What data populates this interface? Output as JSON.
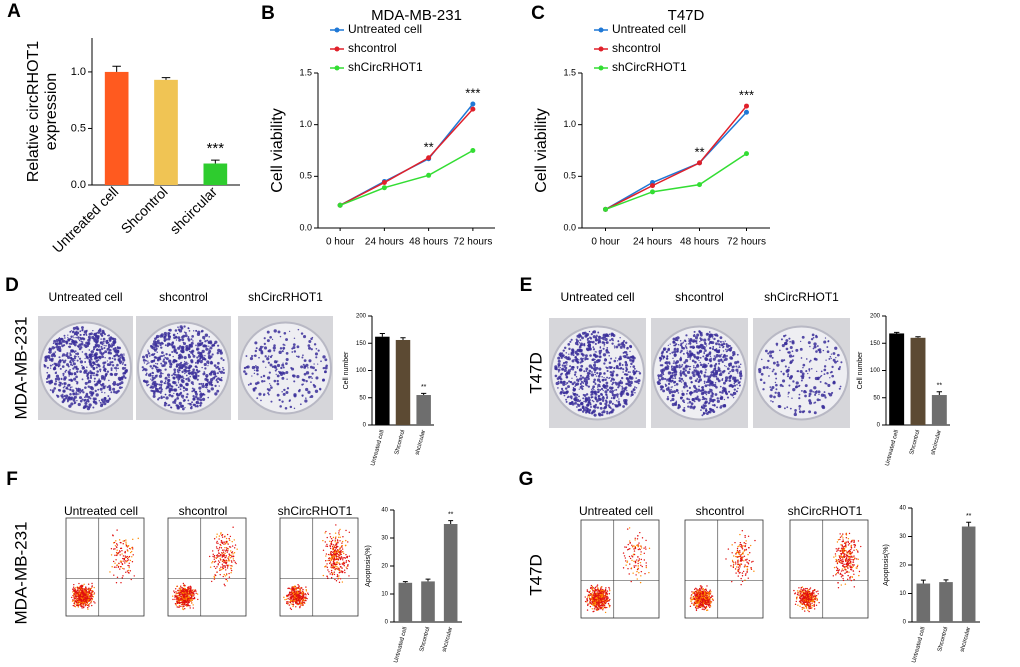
{
  "panel_letters": [
    "A",
    "B",
    "C",
    "D",
    "E",
    "F",
    "G"
  ],
  "image_rows": [
    {
      "row_label": "MDA-MB-231",
      "captions": [
        "Untreated cell",
        "shcontrol",
        "shCircRHOT1"
      ]
    },
    {
      "row_label": "T47D",
      "captions": [
        "Untreated cell",
        "shcontrol",
        "shCircRHOT1"
      ]
    },
    {
      "row_label": "MDA-MB-231",
      "captions": [
        "Untreated cell",
        "shcontrol",
        "shCircRHOT1"
      ]
    },
    {
      "row_label": "T47D",
      "captions": [
        "Untreated cell",
        "shcontrol",
        "shCircRHOT1"
      ]
    }
  ],
  "chart_data": [
    {
      "type": "bar",
      "ylabel": [
        "Relative circRHOT1",
        "expression"
      ],
      "categories": [
        "Untreated cell",
        "Shcontrol",
        "shcircular"
      ],
      "values": [
        1.0,
        0.93,
        0.19
      ],
      "errors": [
        0.05,
        0.02,
        0.03
      ],
      "colors": [
        "#ff5a1f",
        "#f0c454",
        "#2ecc2e"
      ],
      "ylim": [
        0,
        1.3
      ],
      "yticks": [
        {
          "value": 0,
          "label": "0.0"
        },
        {
          "value": 0.5,
          "label": "0.5"
        },
        {
          "value": 1,
          "label": "1.0"
        }
      ],
      "annotations": [
        {
          "text": "***",
          "x": "shcircular"
        }
      ]
    },
    {
      "type": "line",
      "title": "MDA-MB-231",
      "ylabel": "Cell viability",
      "categories": [
        "0 hour",
        "24 hours",
        "48 hours",
        "72 hours"
      ],
      "series": [
        {
          "name": "Untreated cell",
          "color": "#1f78d6",
          "values": [
            0.22,
            0.45,
            0.67,
            1.2
          ]
        },
        {
          "name": "shcontrol",
          "color": "#e0202a",
          "values": [
            0.22,
            0.44,
            0.68,
            1.15
          ]
        },
        {
          "name": "shCircRHOT1",
          "color": "#33dd33",
          "values": [
            0.22,
            0.39,
            0.51,
            0.75
          ]
        }
      ],
      "ylim": [
        0,
        1.5
      ],
      "yticks": [
        {
          "value": 0,
          "label": "0.0"
        },
        {
          "value": 0.5,
          "label": "0.5"
        },
        {
          "value": 1,
          "label": "1.0"
        },
        {
          "value": 1.5,
          "label": "1.5"
        }
      ],
      "annotations": [
        {
          "text": "**",
          "x": "48 hours"
        },
        {
          "text": "***",
          "x": "72 hours"
        }
      ]
    },
    {
      "type": "line",
      "title": "T47D",
      "ylabel": "Cell viability",
      "categories": [
        "0 hour",
        "24 hours",
        "48 hours",
        "72 hours"
      ],
      "series": [
        {
          "name": "Untreated cell",
          "color": "#1f78d6",
          "values": [
            0.18,
            0.44,
            0.63,
            1.12
          ]
        },
        {
          "name": "shcontrol",
          "color": "#e0202a",
          "values": [
            0.18,
            0.41,
            0.63,
            1.18
          ]
        },
        {
          "name": "shCircRHOT1",
          "color": "#33dd33",
          "values": [
            0.18,
            0.35,
            0.42,
            0.72
          ]
        }
      ],
      "ylim": [
        0,
        1.5
      ],
      "yticks": [
        {
          "value": 0,
          "label": "0.0"
        },
        {
          "value": 0.5,
          "label": "0.5"
        },
        {
          "value": 1,
          "label": "1.0"
        },
        {
          "value": 1.5,
          "label": "1.5"
        }
      ],
      "annotations": [
        {
          "text": "**",
          "x": "48 hours"
        },
        {
          "text": "***",
          "x": "72 hours"
        }
      ]
    },
    {
      "type": "bar",
      "ylabel": "Cell number",
      "categories": [
        "Untreated cell",
        "Shcontrol",
        "shcircular"
      ],
      "values": [
        162,
        156,
        55
      ],
      "errors": [
        6,
        4,
        3
      ],
      "colors": [
        "#000000",
        "#5c4a33",
        "#6e6e6e"
      ],
      "ylim": [
        0,
        200
      ],
      "yticks": [
        0,
        50,
        100,
        150,
        200
      ],
      "annotations": [
        {
          "text": "**",
          "x": "shcircular"
        }
      ]
    },
    {
      "type": "bar",
      "ylabel": "Cell number",
      "categories": [
        "Untreated cell",
        "Shcontrol",
        "shcircular"
      ],
      "values": [
        168,
        160,
        55
      ],
      "errors": [
        2,
        2,
        6
      ],
      "colors": [
        "#000000",
        "#5c4a33",
        "#6e6e6e"
      ],
      "ylim": [
        0,
        200
      ],
      "yticks": [
        0,
        50,
        100,
        150,
        200
      ],
      "annotations": [
        {
          "text": "**",
          "x": "shcircular"
        }
      ]
    },
    {
      "type": "bar",
      "ylabel": "Apoptosis(%)",
      "categories": [
        "Untreated cell",
        "Shcontrol",
        "shcircular"
      ],
      "values": [
        14,
        14.5,
        35
      ],
      "errors": [
        0.4,
        0.8,
        1.2
      ],
      "colors": [
        "#6e6e6e",
        "#6e6e6e",
        "#6e6e6e"
      ],
      "ylim": [
        0,
        40
      ],
      "yticks": [
        0,
        10,
        20,
        30,
        40
      ],
      "annotations": [
        {
          "text": "**",
          "x": "shcircular"
        }
      ]
    },
    {
      "type": "bar",
      "ylabel": "Apoptosis(%)",
      "categories": [
        "Untreated cell",
        "Shcontrol",
        "shcircular"
      ],
      "values": [
        13.5,
        14,
        33.5
      ],
      "errors": [
        1.2,
        0.8,
        1.5
      ],
      "colors": [
        "#6e6e6e",
        "#6e6e6e",
        "#6e6e6e"
      ],
      "ylim": [
        0,
        40
      ],
      "yticks": [
        0,
        10,
        20,
        30,
        40
      ],
      "annotations": [
        {
          "text": "**",
          "x": "shcircular"
        }
      ]
    }
  ]
}
